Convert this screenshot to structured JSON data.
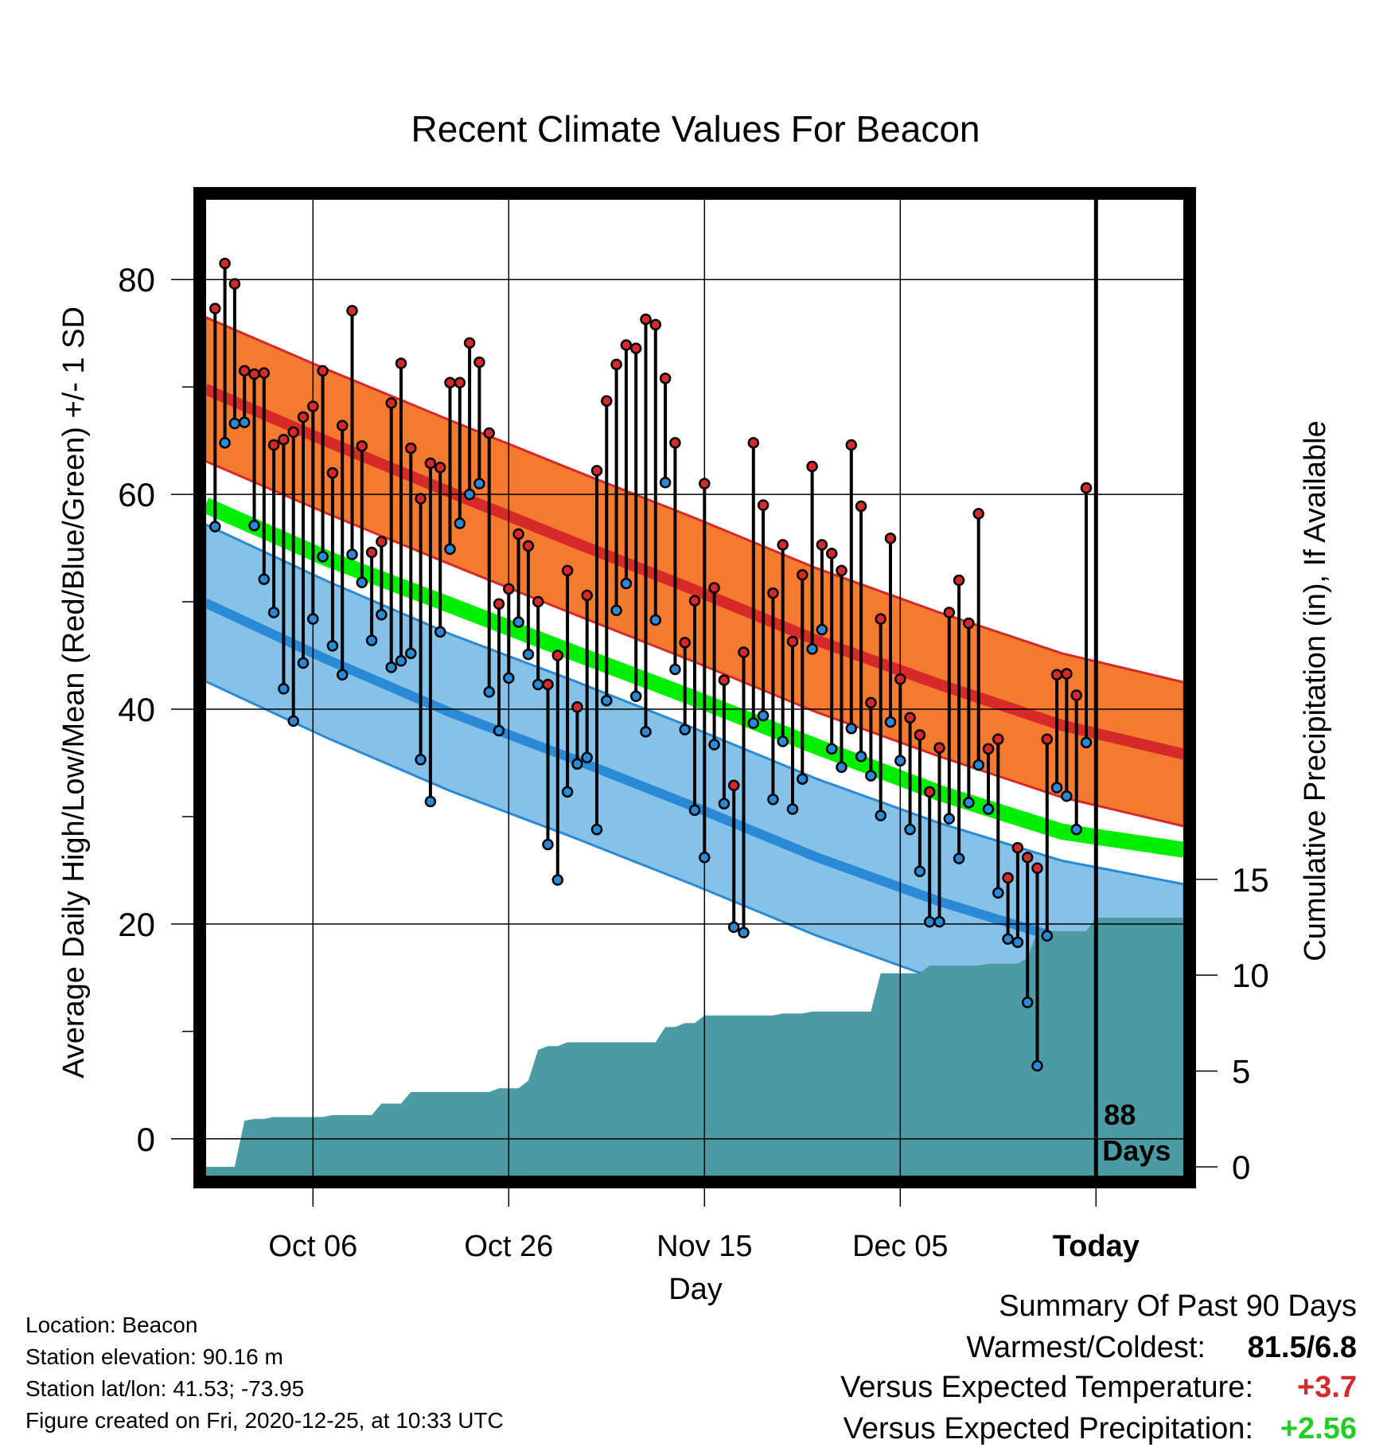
{
  "chart_data": {
    "type": "line",
    "title": "Recent Climate Values For Beacon",
    "xlabel": "Day",
    "ylabel": "Average Daily High/Low/Mean (Red/Blue/Green) +/- 1 SD",
    "y2label": "Cumulative Precipitation (in), If Available",
    "ylim": [
      -3.5,
      87.5
    ],
    "y_ticks": [
      "0",
      "20",
      "40",
      "60",
      "80"
    ],
    "y2lim": [
      -0.5,
      50.5
    ],
    "y2_ticks": [
      "0",
      "5",
      "10",
      "15"
    ],
    "x_range_days": [
      0,
      100
    ],
    "x_ticks": [
      {
        "day": 11,
        "label": "Oct 06"
      },
      {
        "day": 31,
        "label": "Oct 26"
      },
      {
        "day": 51,
        "label": "Nov 15"
      },
      {
        "day": 71,
        "label": "Dec 05"
      },
      {
        "day": 91,
        "label": "Today"
      }
    ],
    "today_marker": {
      "day": 91,
      "label_line1": "88",
      "label_line2": "Days"
    },
    "grid": true,
    "series": [
      {
        "name": "Observed High",
        "color": "#d62a2a",
        "values": [
          77.3,
          81.5,
          79.6,
          71.5,
          71.2,
          71.3,
          64.6,
          65.1,
          65.8,
          67.2,
          68.2,
          71.5,
          62.0,
          66.4,
          77.1,
          64.5,
          54.6,
          55.6,
          68.5,
          72.2,
          64.3,
          59.6,
          62.9,
          62.5,
          70.4,
          70.4,
          74.1,
          72.3,
          65.7,
          49.8,
          51.2,
          56.3,
          55.2,
          50.0,
          42.3,
          45.0,
          52.9,
          40.2,
          50.6,
          62.2,
          68.7,
          72.1,
          73.9,
          73.6,
          76.3,
          75.8,
          70.8,
          64.8,
          46.2,
          50.1,
          61.0,
          51.3,
          42.7,
          32.9,
          45.3,
          64.8,
          59.0,
          50.8,
          55.3,
          46.3,
          52.5,
          62.6,
          55.3,
          54.5,
          52.9,
          64.6,
          58.9,
          40.6,
          48.4,
          55.9,
          42.8,
          39.2,
          37.6,
          32.3,
          36.4,
          49.0,
          52.0,
          48.0,
          58.2,
          36.3,
          37.2,
          24.3,
          27.1,
          26.2,
          25.2,
          37.2,
          43.2,
          43.3,
          41.3,
          60.6
        ]
      },
      {
        "name": "Observed Low",
        "color": "#2a8ad6",
        "values": [
          57.0,
          64.8,
          66.6,
          66.7,
          57.1,
          52.1,
          49.0,
          41.9,
          38.9,
          44.3,
          48.4,
          54.2,
          45.9,
          43.2,
          54.4,
          51.8,
          46.4,
          48.8,
          43.9,
          44.5,
          45.2,
          35.3,
          31.4,
          47.2,
          54.9,
          57.3,
          60.0,
          61.0,
          41.6,
          38.0,
          42.9,
          48.1,
          45.1,
          42.3,
          27.4,
          24.1,
          32.3,
          34.9,
          35.5,
          28.8,
          40.8,
          49.2,
          51.7,
          41.2,
          37.9,
          48.3,
          61.1,
          43.7,
          38.1,
          30.6,
          26.2,
          36.7,
          31.2,
          19.7,
          19.2,
          38.7,
          39.4,
          31.6,
          37.0,
          30.7,
          33.5,
          45.6,
          47.4,
          36.3,
          34.6,
          38.2,
          35.6,
          33.8,
          30.1,
          38.8,
          35.2,
          28.8,
          24.9,
          20.2,
          20.2,
          29.8,
          26.1,
          31.3,
          34.8,
          30.7,
          22.9,
          18.6,
          18.3,
          12.7,
          6.8,
          18.9,
          32.7,
          31.9,
          28.8,
          36.9
        ]
      },
      {
        "name": "Normal High",
        "color": "#d62a2a",
        "band_color": "#f47a30",
        "sd": 6.7,
        "values": [
          69.8,
          64.9,
          60.2,
          55.6,
          51.1,
          46.4,
          42.3,
          38.5,
          35.8
        ]
      },
      {
        "name": "Normal Low",
        "color": "#2a8ad6",
        "band_color": "#86c1e8",
        "sd": 7.3,
        "values": [
          49.9,
          44.6,
          39.7,
          35.4,
          30.9,
          26.2,
          22.1,
          18.6,
          16.4
        ]
      },
      {
        "name": "Normal Mean",
        "color": "#00ee00",
        "values": [
          59.0,
          54.0,
          49.7,
          45.3,
          41.0,
          36.5,
          32.2,
          28.6,
          26.9
        ]
      },
      {
        "name": "Cumulative Precipitation",
        "color": "#4a9ba3",
        "values": [
          0.0,
          0.0,
          0.0,
          0.0,
          2.4,
          2.5,
          2.5,
          2.6,
          2.6,
          2.6,
          2.6,
          2.6,
          2.6,
          2.7,
          2.7,
          2.7,
          2.7,
          2.7,
          3.3,
          3.3,
          3.3,
          3.9,
          3.9,
          3.9,
          3.9,
          3.9,
          3.9,
          3.9,
          3.9,
          3.9,
          4.1,
          4.1,
          4.1,
          4.5,
          6.1,
          6.3,
          6.3,
          6.5,
          6.5,
          6.5,
          6.5,
          6.5,
          6.5,
          6.5,
          6.5,
          6.5,
          6.5,
          7.3,
          7.3,
          7.5,
          7.5,
          7.9,
          7.9,
          7.9,
          7.9,
          7.9,
          7.9,
          7.9,
          7.9,
          8.0,
          8.0,
          8.0,
          8.1,
          8.1,
          8.1,
          8.1,
          8.1,
          8.1,
          8.1,
          10.1,
          10.1,
          10.1,
          10.1,
          10.1,
          10.5,
          10.5,
          10.5,
          10.5,
          10.5,
          10.5,
          10.6,
          10.6,
          10.6,
          10.6,
          10.9,
          12.3,
          12.3,
          12.3,
          12.3,
          12.3,
          12.3,
          13.0,
          13.0,
          13.0,
          13.0,
          13.0,
          13.0,
          13.0,
          13.0,
          13.0,
          13.0
        ]
      }
    ],
    "normals_days": [
      0,
      12.5,
      25,
      37.5,
      50,
      62.5,
      75,
      87.5,
      100
    ]
  },
  "station_info": {
    "location": "Location: Beacon",
    "elevation": "Station elevation: 90.16 m",
    "latlon": "Station lat/lon: 41.53; -73.95",
    "created": "Figure created on Fri, 2020-12-25, at 10:33 UTC"
  },
  "summary": {
    "heading": "Summary Of Past 90 Days",
    "warm_cold_label": "Warmest/Coldest:",
    "warm_cold_value": "81.5/6.8",
    "temp_label": "Versus Expected Temperature:",
    "temp_value": "+3.7",
    "temp_color": "#d62a2a",
    "precip_label": "Versus Expected Precipitation:",
    "precip_value": "+2.56",
    "precip_color": "#22cc22"
  }
}
